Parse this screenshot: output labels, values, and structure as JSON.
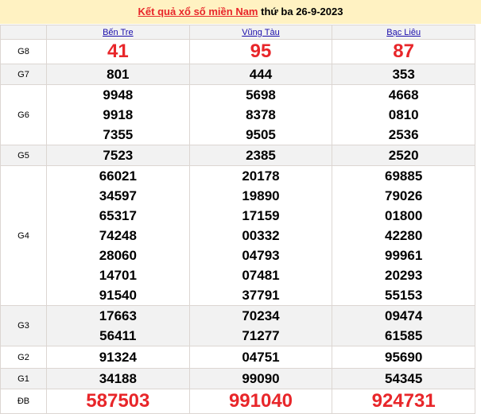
{
  "header": {
    "link_text": "Kết quả xổ số miền Nam",
    "date_text": "thứ ba 26-9-2023"
  },
  "provinces": [
    "Bến Tre",
    "Vũng Tàu",
    "Bạc Liêu"
  ],
  "colors": {
    "accent_red": "#e8262a",
    "title_bg": "#fff2c2",
    "row_gray": "#f2f2f2"
  },
  "prizes": [
    {
      "label": "G8",
      "red": true,
      "values": [
        [
          "41"
        ],
        [
          "95"
        ],
        [
          "87"
        ]
      ]
    },
    {
      "label": "G7",
      "values": [
        [
          "801"
        ],
        [
          "444"
        ],
        [
          "353"
        ]
      ]
    },
    {
      "label": "G6",
      "values": [
        [
          "9948",
          "9918",
          "7355"
        ],
        [
          "5698",
          "8378",
          "9505"
        ],
        [
          "4668",
          "0810",
          "2536"
        ]
      ]
    },
    {
      "label": "G5",
      "values": [
        [
          "7523"
        ],
        [
          "2385"
        ],
        [
          "2520"
        ]
      ]
    },
    {
      "label": "G4",
      "values": [
        [
          "66021",
          "34597",
          "65317",
          "74248",
          "28060",
          "14701",
          "91540"
        ],
        [
          "20178",
          "19890",
          "17159",
          "00332",
          "04793",
          "07481",
          "37791"
        ],
        [
          "69885",
          "79026",
          "01800",
          "42280",
          "99961",
          "20293",
          "55153"
        ]
      ]
    },
    {
      "label": "G3",
      "values": [
        [
          "17663",
          "56411"
        ],
        [
          "70234",
          "71277"
        ],
        [
          "09474",
          "61585"
        ]
      ]
    },
    {
      "label": "G2",
      "values": [
        [
          "91324"
        ],
        [
          "04751"
        ],
        [
          "95690"
        ]
      ]
    },
    {
      "label": "G1",
      "values": [
        [
          "34188"
        ],
        [
          "99090"
        ],
        [
          "54345"
        ]
      ]
    },
    {
      "label": "ĐB",
      "red": true,
      "values": [
        [
          "587503"
        ],
        [
          "991040"
        ],
        [
          "924731"
        ]
      ]
    }
  ]
}
